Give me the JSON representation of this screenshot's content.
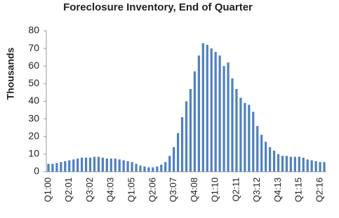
{
  "chart_data": {
    "type": "bar",
    "title": "Foreclosure Inventory, End of Quarter",
    "y_label": "Thousands",
    "categories": [
      "Q1:00",
      null,
      null,
      null,
      null,
      "Q2:01",
      null,
      null,
      null,
      null,
      "Q3:02",
      null,
      null,
      null,
      null,
      "Q4:03",
      null,
      null,
      null,
      null,
      "Q1:05",
      null,
      null,
      null,
      null,
      "Q2:06",
      null,
      null,
      null,
      null,
      "Q3:07",
      null,
      null,
      null,
      null,
      "Q4:08",
      null,
      null,
      null,
      null,
      "Q1:10",
      null,
      null,
      null,
      null,
      "Q2:11",
      null,
      null,
      null,
      null,
      "Q3:12",
      null,
      null,
      null,
      null,
      "Q4:13",
      null,
      null,
      null,
      null,
      "Q1:15",
      null,
      null,
      null,
      null,
      "Q2:16",
      null
    ],
    "values": [
      4.5,
      4.5,
      5,
      5.5,
      6,
      6.5,
      7,
      7.5,
      8,
      8,
      8,
      8.5,
      8.5,
      8,
      7.5,
      7.5,
      7.5,
      7,
      6.5,
      6,
      5.5,
      4.5,
      3.5,
      3,
      2.5,
      2.5,
      3,
      4,
      5.5,
      9,
      14,
      22,
      31,
      40,
      47,
      57,
      66,
      73,
      72,
      70,
      68,
      66,
      60,
      62,
      53,
      47,
      42,
      39,
      38,
      34,
      26,
      21,
      17,
      14,
      12,
      10,
      9,
      9,
      8.5,
      8.5,
      8.5,
      8,
      7,
      6.5,
      6,
      5.5,
      5.5
    ],
    "color": "#4f81bd",
    "ylim": [
      0,
      80
    ],
    "yticks": [
      0,
      10,
      20,
      30,
      40,
      50,
      60,
      70,
      80
    ],
    "grid": false
  }
}
